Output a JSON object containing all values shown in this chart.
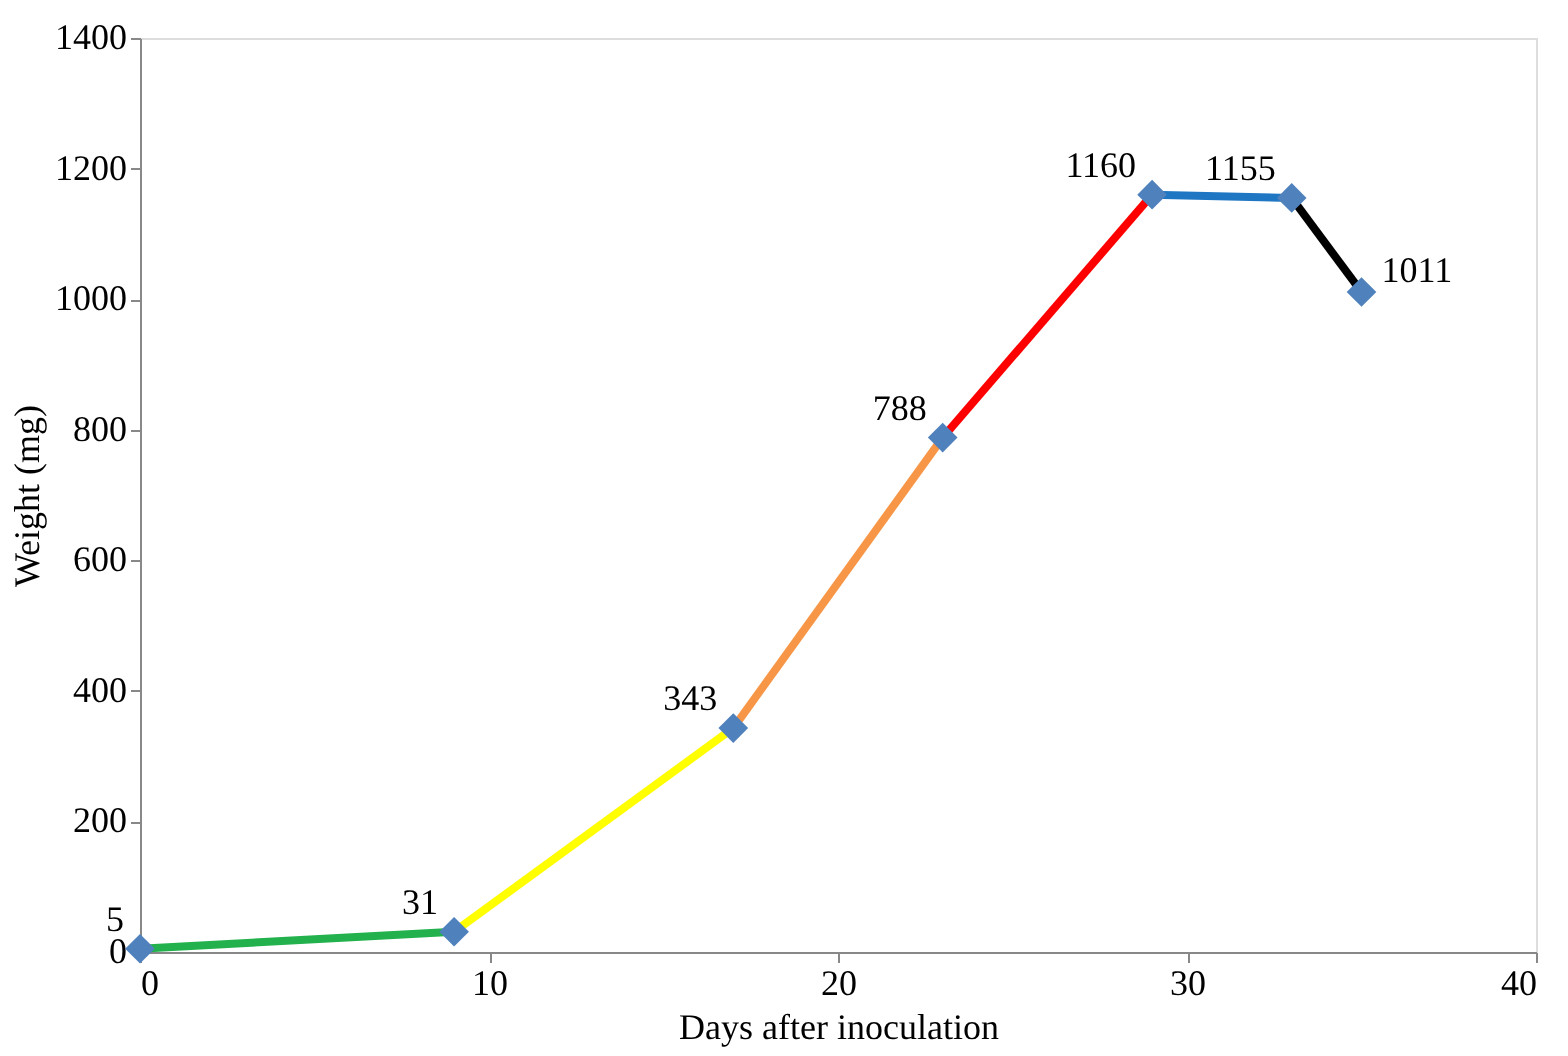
{
  "chart_data": {
    "type": "line",
    "xlabel": "Days after inoculation",
    "ylabel": "Weight (mg)",
    "xlim": [
      0,
      40
    ],
    "xticks": [
      0,
      10,
      20,
      30,
      40
    ],
    "ylim": [
      0,
      1400
    ],
    "yticks": [
      0,
      200,
      400,
      600,
      800,
      1000,
      1200,
      1400
    ],
    "grid": false,
    "series": [
      {
        "color": "#22b14c",
        "x": [
          0,
          9
        ],
        "values": [
          5,
          31
        ],
        "marker": "none"
      },
      {
        "color": "#ffff00",
        "x": [
          9,
          17
        ],
        "values": [
          31,
          343
        ],
        "marker": "none"
      },
      {
        "color": "#f79646",
        "x": [
          17,
          23
        ],
        "values": [
          343,
          788
        ],
        "marker": "none"
      },
      {
        "color": "#ff0000",
        "x": [
          23,
          29
        ],
        "values": [
          788,
          1160
        ],
        "marker": "none"
      },
      {
        "color": "#1f77c4",
        "x": [
          29,
          33
        ],
        "values": [
          1160,
          1155
        ],
        "marker": "none"
      },
      {
        "color": "#000000",
        "x": [
          33,
          35
        ],
        "values": [
          1155,
          1011
        ],
        "marker": "none"
      },
      {
        "type": "scatter",
        "color": "#4f81bd",
        "marker": "diamond",
        "data_labels": true,
        "x": [
          0,
          9,
          17,
          23,
          29,
          33,
          35
        ],
        "values": [
          5,
          31,
          343,
          788,
          1160,
          1155,
          1011
        ]
      }
    ]
  }
}
